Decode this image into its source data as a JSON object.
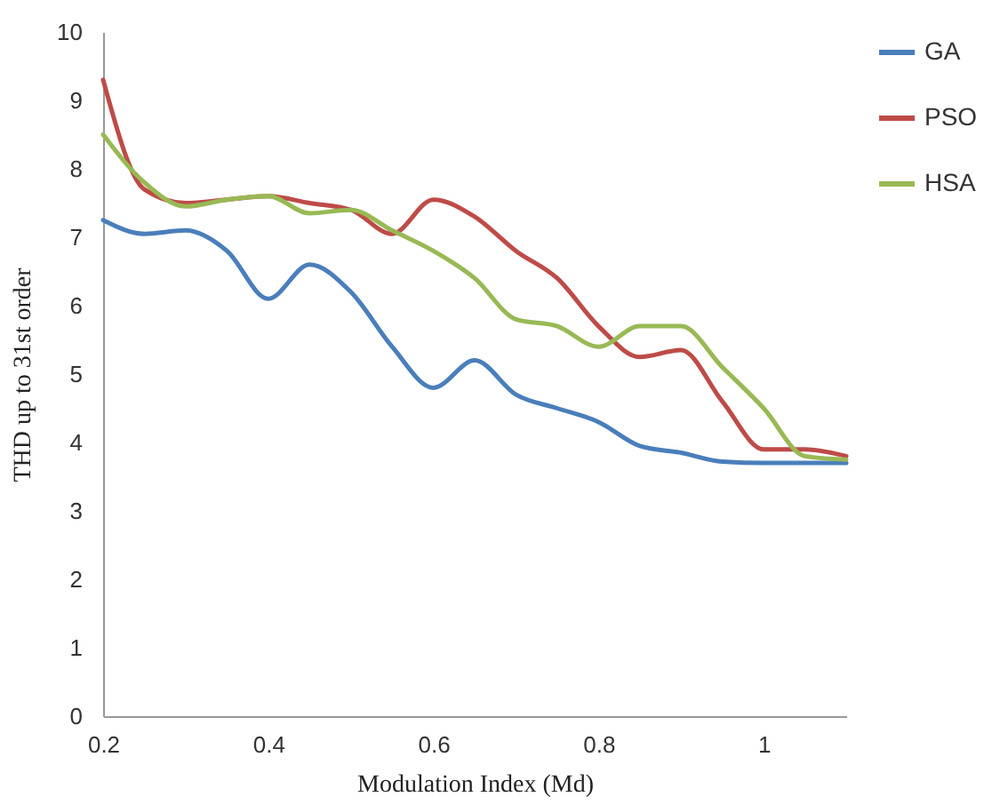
{
  "chart_data": {
    "type": "line",
    "xlabel": "Modulation Index (Md)",
    "ylabel": "THD up to 31st order",
    "xlim": [
      0.2,
      1.1
    ],
    "xticks": [
      0.2,
      0.4,
      0.6,
      0.8,
      1
    ],
    "ylim": [
      0,
      10
    ],
    "yticks": [
      0,
      1,
      2,
      3,
      4,
      5,
      6,
      7,
      8,
      9,
      10
    ],
    "grid": false,
    "legend": "right",
    "marker": "none",
    "line_style": "solid",
    "series": [
      {
        "name": "GA",
        "color": "#4a7ebb",
        "x": [
          0.2,
          0.25,
          0.3,
          0.35,
          0.4,
          0.45,
          0.5,
          0.55,
          0.6,
          0.65,
          0.7,
          0.75,
          0.8,
          0.85,
          0.9,
          0.95,
          1.0,
          1.1
        ],
        "values": [
          7.25,
          7.05,
          7.1,
          6.8,
          6.1,
          6.6,
          6.2,
          5.4,
          4.8,
          5.2,
          4.7,
          4.5,
          4.3,
          3.95,
          3.85,
          3.72,
          3.7,
          3.7
        ]
      },
      {
        "name": "PSO",
        "color": "#be4b48",
        "x": [
          0.2,
          0.25,
          0.3,
          0.35,
          0.4,
          0.45,
          0.5,
          0.55,
          0.6,
          0.65,
          0.7,
          0.75,
          0.8,
          0.85,
          0.9,
          0.95,
          1.0,
          1.05,
          1.1
        ],
        "values": [
          9.3,
          7.7,
          7.5,
          7.55,
          7.6,
          7.5,
          7.4,
          7.05,
          7.55,
          7.3,
          6.8,
          6.4,
          5.7,
          5.25,
          5.35,
          4.6,
          3.9,
          3.9,
          3.8
        ]
      },
      {
        "name": "HSA",
        "color": "#98b954",
        "x": [
          0.2,
          0.25,
          0.3,
          0.35,
          0.4,
          0.45,
          0.5,
          0.55,
          0.6,
          0.65,
          0.7,
          0.75,
          0.8,
          0.85,
          0.9,
          0.95,
          1.0,
          1.05,
          1.1
        ],
        "values": [
          8.5,
          7.8,
          7.45,
          7.55,
          7.6,
          7.35,
          7.4,
          7.1,
          6.8,
          6.4,
          5.8,
          5.7,
          5.4,
          5.7,
          5.7,
          5.1,
          4.5,
          3.8,
          3.75
        ]
      }
    ]
  }
}
